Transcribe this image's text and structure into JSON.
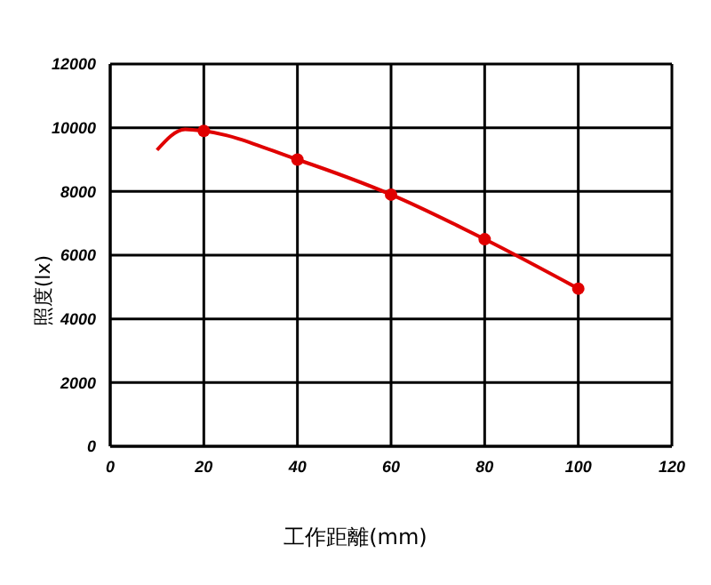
{
  "chart_data": {
    "type": "line",
    "xlabel": "工作距離(mm)",
    "ylabel": "照度(lx)",
    "xlim": [
      0,
      120
    ],
    "xticks": [
      0,
      20,
      40,
      60,
      80,
      100,
      120
    ],
    "ylim": [
      0,
      12000
    ],
    "yticks": [
      0,
      2000,
      4000,
      6000,
      8000,
      10000,
      12000
    ],
    "grid": true,
    "series": [
      {
        "color": "#e00000",
        "marker": "none",
        "x": [
          10,
          16,
          20,
          40,
          60,
          80,
          100
        ],
        "values": [
          9300,
          9950,
          9900,
          9000,
          7900,
          6500,
          4950
        ]
      },
      {
        "type": "scatter",
        "color": "#e00000",
        "marker": "circle",
        "x": [
          20,
          40,
          60,
          80,
          100
        ],
        "values": [
          9900,
          9000,
          7900,
          6500,
          4950
        ]
      }
    ]
  }
}
